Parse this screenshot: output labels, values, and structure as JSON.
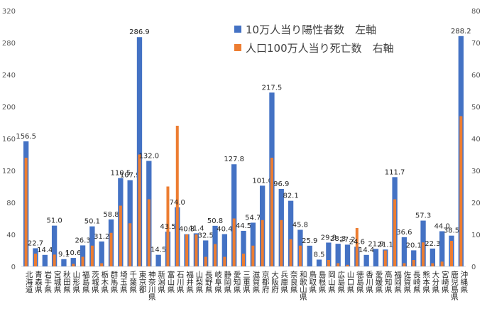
{
  "chart_data": {
    "type": "bar",
    "categories": [
      "北海道",
      "青森県",
      "岩手県",
      "宮城県",
      "秋田県",
      "山形県",
      "福島県",
      "茨城県",
      "栃木県",
      "群馬県",
      "埼玉県",
      "千葉県",
      "東京都",
      "神奈川県",
      "新潟県",
      "富山県",
      "石川県",
      "福井県",
      "山梨県",
      "長野県",
      "岐阜県",
      "静岡県",
      "愛知県",
      "三重県",
      "滋賀県",
      "京都府",
      "大阪府",
      "兵庫県",
      "奈良県",
      "和歌山県",
      "鳥取県",
      "島根県",
      "岡山県",
      "広島県",
      "山口県",
      "徳島県",
      "香川県",
      "愛媛県",
      "高知県",
      "福岡県",
      "佐賀県",
      "長崎県",
      "熊本県",
      "大分県",
      "宮崎県",
      "鹿児島県",
      "沖縄県"
    ],
    "series": [
      {
        "name": "10万人当り陽性者数　左軸",
        "axis": "left",
        "color": "#4472c4",
        "values": [
          156.5,
          22.7,
          14.4,
          51.0,
          9.1,
          10.6,
          26.3,
          50.1,
          31.2,
          58.8,
          110.5,
          107.9,
          286.9,
          132.0,
          14.5,
          43.5,
          74.0,
          40.3,
          41.4,
          32.5,
          50.8,
          40.4,
          127.8,
          44.5,
          54.7,
          101.0,
          217.5,
          96.9,
          82.1,
          45.8,
          25.9,
          8.5,
          29.8,
          28.3,
          27.2,
          24.6,
          14.4,
          21.9,
          21.1,
          111.7,
          36.6,
          20.1,
          57.3,
          22.3,
          44.0,
          38.5,
          288.2
        ],
        "labels": [
          "156.5",
          "22.7",
          "14.4",
          "51.0",
          "9.1",
          "10.6",
          "26.3",
          "50.1",
          "31.2",
          "58.8",
          "110.5",
          "107.9",
          "286.9",
          "132.0",
          "14.5",
          "43.5",
          "74.0",
          "40.3",
          "41.4",
          "32.5",
          "50.8",
          "40.4",
          "127.8",
          "44.5",
          "54.7",
          "101.0",
          "217.5",
          "96.9",
          "82.1",
          "45.8",
          "25.9",
          "8.5",
          "29.8",
          "28.3",
          "27.2",
          "24.6",
          "14.4",
          "21.9",
          "21.1",
          "111.7",
          "36.6",
          "20.1",
          "57.3",
          "22.3",
          "44.0",
          "38.5",
          "288.2"
        ]
      },
      {
        "name": "人口100万人当り死亡数　右軸",
        "axis": "right",
        "color": "#ed7d31",
        "values": [
          34,
          4,
          0,
          3.7,
          0,
          0.8,
          3,
          6.5,
          1,
          10.5,
          19,
          13.5,
          35,
          21,
          0,
          25,
          44,
          10,
          10,
          3,
          7,
          3,
          15,
          4,
          6.5,
          14.5,
          34,
          14.5,
          8.5,
          6.5,
          0,
          0,
          2,
          1,
          0.5,
          12,
          0,
          0,
          5,
          21,
          1,
          2,
          7.5,
          1,
          1.5,
          8,
          47
        ]
      }
    ],
    "y_left": {
      "min": 0,
      "max": 320,
      "ticks": [
        "0",
        "40",
        "80",
        "120",
        "160",
        "200",
        "240",
        "280",
        "320"
      ]
    },
    "y_right": {
      "min": 0,
      "max": 80,
      "ticks": [
        "0",
        "10",
        "20",
        "30",
        "40",
        "50",
        "60",
        "70",
        "80"
      ]
    },
    "grid": false,
    "legend_position": "top-center"
  },
  "colors": {
    "bar_blue": "#4472c4",
    "bar_orange": "#ed7d31",
    "axis_text": "#595959",
    "label_text": "#262626"
  }
}
